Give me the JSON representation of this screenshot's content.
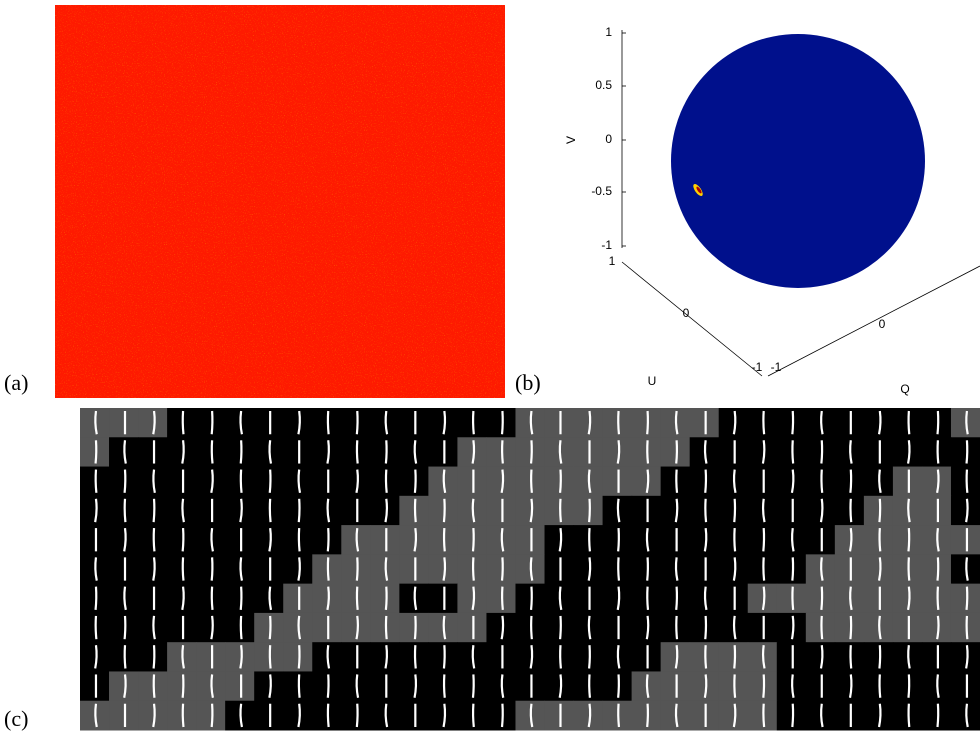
{
  "panels": {
    "a": {
      "label": "(a)"
    },
    "b": {
      "label": "(b)",
      "v_axis": {
        "label": "V",
        "ticks": [
          "1",
          "0.5",
          "0",
          "-0.5",
          "-1"
        ]
      },
      "u_axis": {
        "label": "U",
        "ticks": [
          "1",
          "0",
          "-1"
        ]
      },
      "q_axis": {
        "label": "Q",
        "ticks": [
          "-1",
          "0"
        ]
      }
    },
    "c": {
      "label": "(c)"
    }
  }
}
